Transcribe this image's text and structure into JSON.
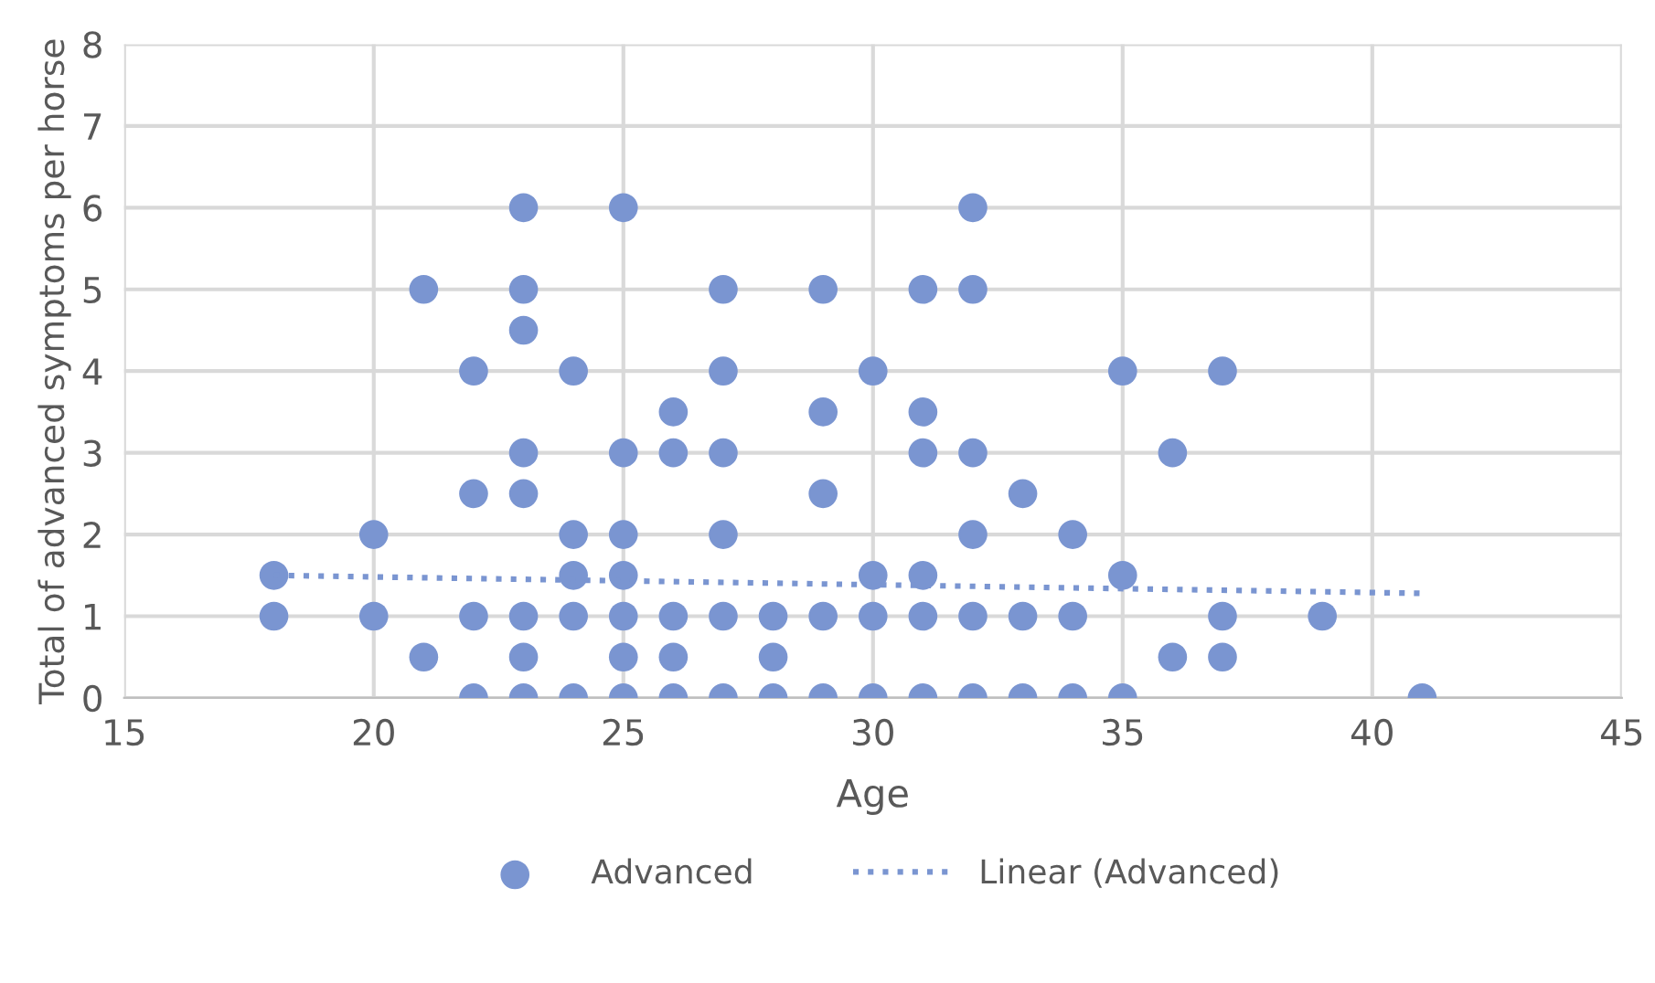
{
  "chart_data": {
    "type": "scatter",
    "xlabel": "Age",
    "ylabel": "Total of advanced symptoms per horse",
    "xlim": [
      15,
      45
    ],
    "xticks": [
      15,
      20,
      25,
      30,
      35,
      40,
      45
    ],
    "ylim": [
      0,
      8
    ],
    "yticks": [
      0,
      1,
      2,
      3,
      4,
      5,
      6,
      7,
      8
    ],
    "grid": true,
    "legend": "bottom",
    "series": [
      {
        "name": "Advanced",
        "marker": "circle",
        "color": "#7a95d1",
        "x": [
          18,
          18,
          20,
          20,
          21,
          21,
          22,
          22,
          22,
          22,
          23,
          23,
          23,
          23,
          23,
          23,
          23,
          23,
          24,
          24,
          24,
          24,
          24,
          25,
          25,
          25,
          25,
          25,
          25,
          25,
          26,
          26,
          26,
          26,
          26,
          27,
          27,
          27,
          27,
          27,
          27,
          28,
          28,
          28,
          29,
          29,
          29,
          29,
          29,
          30,
          30,
          30,
          30,
          31,
          31,
          31,
          31,
          31,
          31,
          32,
          32,
          32,
          32,
          32,
          32,
          33,
          33,
          33,
          34,
          34,
          34,
          35,
          35,
          35,
          36,
          36,
          37,
          37,
          37,
          39,
          41
        ],
        "values": [
          1.5,
          1,
          2,
          1,
          5,
          0.5,
          4,
          2.5,
          1,
          0,
          6,
          5,
          4.5,
          3,
          2.5,
          1,
          0.5,
          0,
          4,
          2,
          1.5,
          1,
          0,
          6,
          3,
          2,
          1.5,
          1,
          0.5,
          0,
          3.5,
          3,
          1,
          0.5,
          0,
          5,
          4,
          3,
          2,
          1,
          0,
          1,
          0.5,
          0,
          5,
          3.5,
          2.5,
          1,
          0,
          4,
          1.5,
          1,
          0,
          5,
          3.5,
          3,
          1.5,
          1,
          0,
          6,
          5,
          3,
          2,
          1,
          0,
          2.5,
          1,
          0,
          2,
          1,
          0,
          4,
          1.5,
          0,
          3,
          0.5,
          4,
          1,
          0.5,
          1,
          0
        ]
      },
      {
        "name": "Linear (Advanced)",
        "type": "line",
        "color": "#7a95d1",
        "line_style": "dotted",
        "x": [
          18,
          41
        ],
        "values": [
          1.5,
          1.28
        ]
      }
    ]
  }
}
